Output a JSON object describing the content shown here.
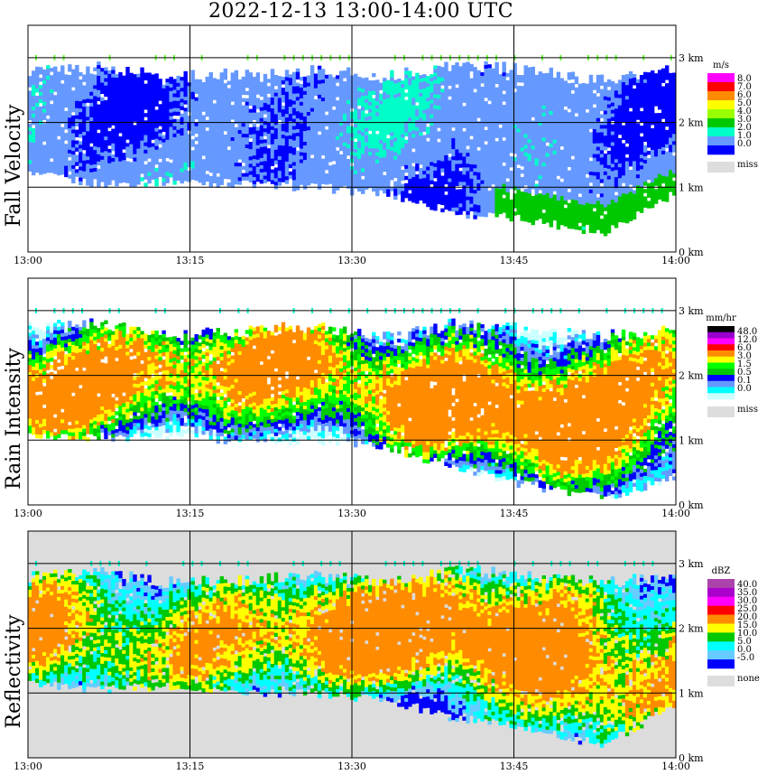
{
  "title": "2022-12-13   13:00-14:00 UTC",
  "chart_data": [
    {
      "type": "heatmap",
      "ylabel": "Fall Velocity",
      "x_ticks": [
        "13:00",
        "13:15",
        "13:30",
        "13:45",
        "14:00"
      ],
      "y_ticks": [
        "0 km",
        "1 km",
        "2 km",
        "3 km"
      ],
      "ylim": [
        0,
        3.5
      ],
      "legend": {
        "unit": "m/s",
        "levels": [
          "8.0",
          "7.0",
          "6.0",
          "5.0",
          "4.0",
          "3.0",
          "2.0",
          "1.0",
          "0.0"
        ],
        "colors": [
          "#ff00ff",
          "#ff0000",
          "#ff8c00",
          "#ffff00",
          "#99ff00",
          "#00c800",
          "#00ffc8",
          "#6699ff",
          "#0000ff",
          "#dddddd"
        ],
        "missing_label": "miss"
      },
      "background": "#ffffff",
      "cloud": {
        "bottom": [
          1.2,
          1.05,
          1.1,
          1.05,
          1.0,
          0.9,
          0.6,
          0.5,
          0.3,
          0.9
        ],
        "top": [
          2.8,
          2.85,
          2.7,
          2.75,
          2.8,
          2.7,
          2.9,
          2.8,
          2.65,
          2.8
        ]
      }
    },
    {
      "type": "heatmap",
      "ylabel": "Rain Intensity",
      "x_ticks": [
        "13:00",
        "13:15",
        "13:30",
        "13:45",
        "14:00"
      ],
      "y_ticks": [
        "0 km",
        "1 km",
        "2 km",
        "3 km"
      ],
      "ylim": [
        0,
        3.5
      ],
      "legend": {
        "unit": "mm/hr",
        "levels": [
          "48.0",
          "12.0",
          "6.0",
          "3.0",
          "1.5",
          "0.5",
          "0.1",
          "0.0"
        ],
        "colors": [
          "#000000",
          "#9900cc",
          "#ff00ff",
          "#ff0000",
          "#ff8c00",
          "#ffff00",
          "#00ff00",
          "#00c800",
          "#0000ff",
          "#6699ff",
          "#00ffff",
          "#ccffff",
          "#dddddd"
        ],
        "missing_label": "miss"
      },
      "background": "#ffffff",
      "cloud": {
        "bottom": [
          1.1,
          1.05,
          1.05,
          1.0,
          1.0,
          0.9,
          0.55,
          0.3,
          0.1,
          0.4
        ],
        "top": [
          2.75,
          2.8,
          2.6,
          2.7,
          2.75,
          2.6,
          2.8,
          2.7,
          2.6,
          2.7
        ]
      }
    },
    {
      "type": "heatmap",
      "ylabel": "Reflectivity",
      "x_ticks": [
        "13:00",
        "13:15",
        "13:30",
        "13:45",
        "14:00"
      ],
      "y_ticks": [
        "0 km",
        "1 km",
        "2 km",
        "3 km"
      ],
      "ylim": [
        0,
        3.5
      ],
      "legend": {
        "unit": "dBZ",
        "levels": [
          "40.0",
          "35.0",
          "30.0",
          "25.0",
          "20.0",
          "15.0",
          "10.0",
          "5.0",
          "0.0",
          "-5.0"
        ],
        "colors": [
          "#aa44aa",
          "#aa00cc",
          "#ff00ff",
          "#ff0000",
          "#ff8c00",
          "#ffff00",
          "#00c800",
          "#00ffff",
          "#66ccff",
          "#0000ff",
          "#dddddd"
        ],
        "missing_label": "none"
      },
      "background": "#dcdcdc",
      "cloud": {
        "bottom": [
          1.15,
          1.05,
          1.1,
          1.0,
          1.0,
          0.9,
          0.6,
          0.45,
          0.2,
          0.8
        ],
        "top": [
          2.8,
          2.85,
          2.7,
          2.75,
          2.8,
          2.7,
          2.9,
          2.8,
          2.7,
          2.8
        ]
      }
    }
  ]
}
